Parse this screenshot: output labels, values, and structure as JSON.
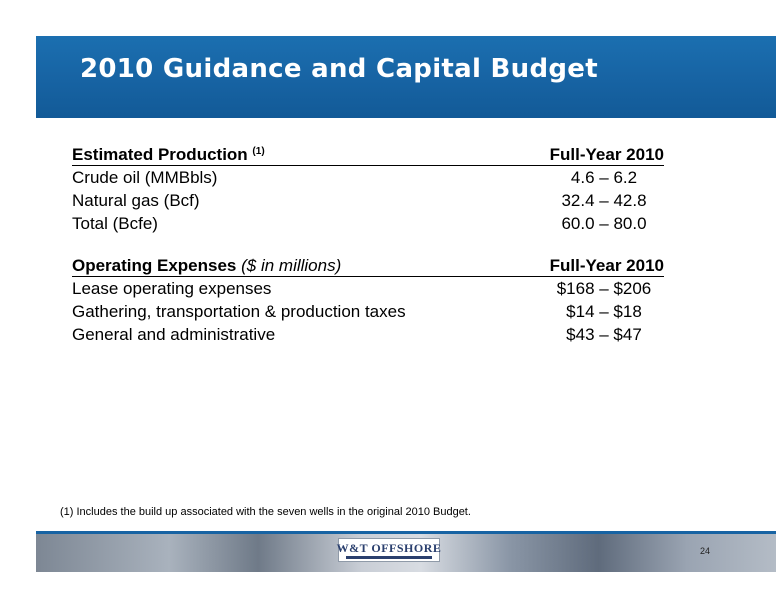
{
  "title": "2010 Guidance and Capital Budget",
  "production": {
    "header_label": "Estimated Production",
    "header_note": "(1)",
    "header_value": "Full-Year 2010",
    "rows": [
      {
        "label": "Crude oil (MMBbls)",
        "value": "4.6 – 6.2"
      },
      {
        "label": "Natural gas (Bcf)",
        "value": "32.4 – 42.8"
      },
      {
        "label": "Total (Bcfe)",
        "value": "60.0 – 80.0"
      }
    ]
  },
  "expenses": {
    "header_label": "Operating Expenses",
    "header_unit": "($ in millions)",
    "header_value": "Full-Year 2010",
    "rows": [
      {
        "label": "Lease operating expenses",
        "value": "$168 – $206"
      },
      {
        "label": "Gathering, transportation & production taxes",
        "value": "$14 – $18"
      },
      {
        "label": "General and administrative",
        "value": "$43 – $47"
      }
    ]
  },
  "footnote": "(1) Includes the build up associated with the seven wells in the original 2010 Budget.",
  "logo_text": "W&T OFFSHORE",
  "page_number": "24",
  "colors": {
    "banner": "#1763a3",
    "title_text": "#ffffff"
  }
}
